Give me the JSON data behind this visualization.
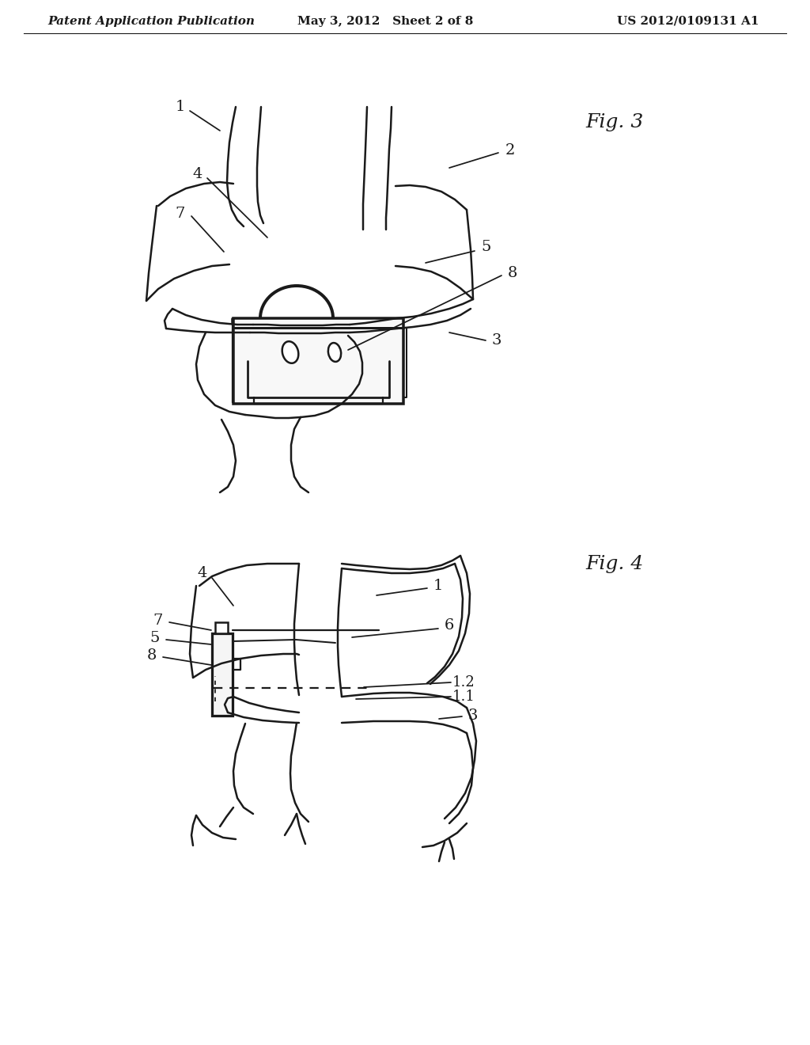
{
  "background_color": "#ffffff",
  "header_left": "Patent Application Publication",
  "header_center": "May 3, 2012   Sheet 2 of 8",
  "header_right": "US 2012/0109131 A1",
  "fig3_label": "Fig. 3",
  "fig4_label": "Fig. 4",
  "line_color": "#1a1a1a",
  "line_width": 1.8,
  "label_fontsize": 14,
  "header_fontsize": 11,
  "fig_label_fontsize": 18
}
